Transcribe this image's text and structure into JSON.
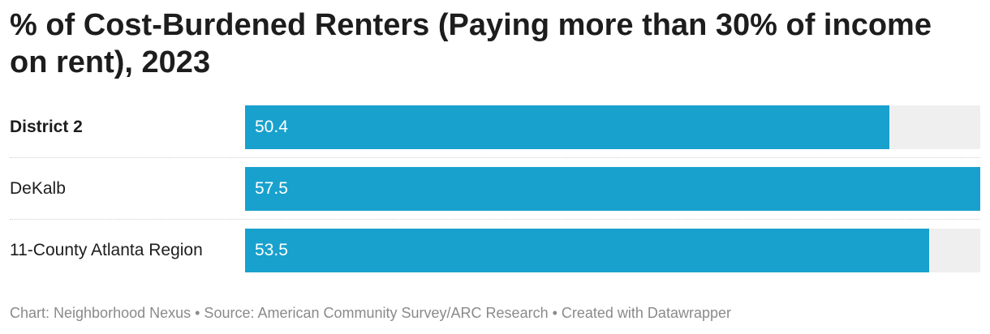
{
  "title": "% of Cost-Burdened Renters (Paying more than 30% of income on rent), 2023",
  "footer": "Chart: Neighborhood Nexus • Source: American Community Survey/ARC Research • Created with Datawrapper",
  "colors": {
    "bar": "#18a1cd",
    "track": "#efefef",
    "value_text": "#ffffff"
  },
  "chart_data": {
    "type": "bar",
    "orientation": "horizontal",
    "categories": [
      "District 2",
      "DeKalb",
      "11-County Atlanta Region"
    ],
    "values": [
      50.4,
      57.5,
      53.5
    ],
    "value_labels": [
      "50.4",
      "57.5",
      "53.5"
    ],
    "highlighted_category": "District 2",
    "xlim": [
      0,
      57.5
    ],
    "grid": false
  }
}
